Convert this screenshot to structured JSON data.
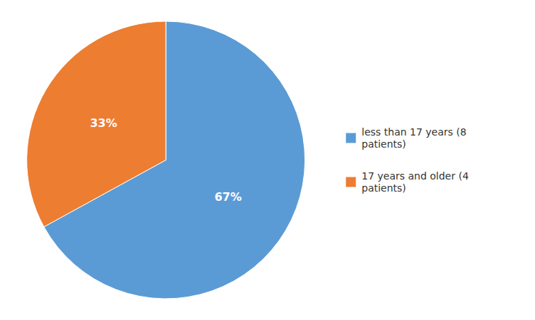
{
  "chart_data": {
    "type": "pie",
    "categories": [
      "less than 17 years (8\npatients)",
      "17 years and older (4\npatients)"
    ],
    "values": [
      67,
      33
    ],
    "value_labels": [
      "67%",
      "33%"
    ],
    "colors": [
      "#5B9BD5",
      "#ED7D31"
    ],
    "data_labels": true,
    "legend": "right"
  }
}
